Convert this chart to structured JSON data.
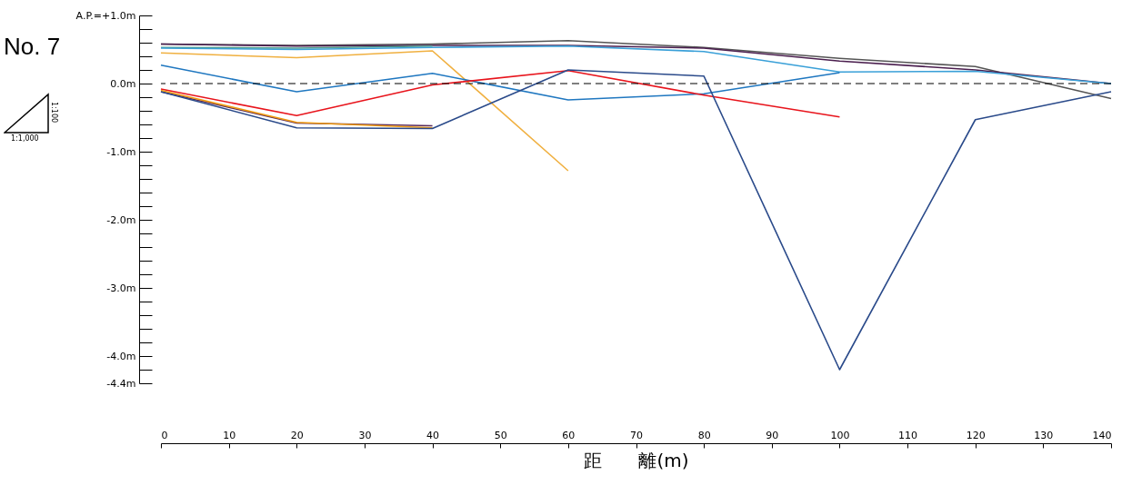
{
  "chart_data": {
    "type": "line",
    "title": "No. 7",
    "xlabel": "距　　離(m)",
    "annotations": [
      "1:100",
      "1:1,000"
    ],
    "x": [
      0,
      20,
      40,
      60,
      80,
      100,
      120,
      140
    ],
    "series": [
      {
        "color": "#555555",
        "values": [
          0.58,
          0.56,
          0.58,
          0.63,
          0.53,
          0.37,
          0.25,
          -0.22
        ]
      },
      {
        "color": "#4b1f4f",
        "values": [
          0.58,
          0.55,
          0.56,
          0.56,
          0.52,
          0.33,
          0.2,
          0.0
        ]
      },
      {
        "color": "#4a9a8a",
        "values": [
          0.53,
          0.52,
          0.55,
          null,
          null,
          null,
          null,
          null
        ]
      },
      {
        "color": "#3aa0d8",
        "values": [
          0.52,
          0.5,
          0.53,
          0.55,
          0.47,
          0.17,
          0.18,
          0.0
        ]
      },
      {
        "color": "#f0b040",
        "values": [
          0.45,
          0.38,
          0.48,
          -1.28,
          null,
          null,
          null,
          null
        ]
      },
      {
        "color": "#1f77c0",
        "values": [
          0.27,
          -0.12,
          0.15,
          -0.24,
          -0.15,
          0.16,
          null,
          null
        ]
      },
      {
        "color": "#e8141c",
        "values": [
          -0.08,
          -0.47,
          -0.02,
          0.19,
          -0.17,
          -0.49,
          null,
          null
        ]
      },
      {
        "color": "#5a2a5a",
        "values": [
          -0.12,
          -0.58,
          -0.62,
          null,
          null,
          null,
          null,
          null
        ]
      },
      {
        "color": "#f09a10",
        "values": [
          -0.1,
          -0.57,
          -0.65,
          null,
          null,
          null,
          null,
          null
        ]
      },
      {
        "color": "#2a4a8a",
        "values": [
          -0.12,
          -0.65,
          -0.66,
          0.2,
          0.11,
          -4.2,
          -0.53,
          -0.12
        ]
      }
    ],
    "xlim": [
      0,
      140
    ],
    "xticks": [
      0,
      10,
      20,
      30,
      40,
      50,
      60,
      70,
      80,
      90,
      100,
      110,
      120,
      130,
      140
    ],
    "ylim": [
      -4.4,
      1.0
    ],
    "yticks": [
      {
        "value": 1.0,
        "label": "A.P.=+1.0m"
      },
      {
        "value": 0.8,
        "label": null
      },
      {
        "value": 0.6,
        "label": null
      },
      {
        "value": 0.4,
        "label": null
      },
      {
        "value": 0.2,
        "label": null
      },
      {
        "value": 0,
        "label": "0.0m"
      },
      {
        "value": -0.2,
        "label": null
      },
      {
        "value": -0.4,
        "label": null
      },
      {
        "value": -0.6,
        "label": null
      },
      {
        "value": -0.8,
        "label": null
      },
      {
        "value": -1.0,
        "label": "-1.0m"
      },
      {
        "value": -1.2,
        "label": null
      },
      {
        "value": -1.4,
        "label": null
      },
      {
        "value": -1.6,
        "label": null
      },
      {
        "value": -1.8,
        "label": null
      },
      {
        "value": -2.0,
        "label": "-2.0m"
      },
      {
        "value": -2.2,
        "label": null
      },
      {
        "value": -2.4,
        "label": null
      },
      {
        "value": -2.6,
        "label": null
      },
      {
        "value": -2.8,
        "label": null
      },
      {
        "value": -3.0,
        "label": "-3.0m"
      },
      {
        "value": -3.2,
        "label": null
      },
      {
        "value": -3.4,
        "label": null
      },
      {
        "value": -3.6,
        "label": null
      },
      {
        "value": -3.8,
        "label": null
      },
      {
        "value": -4.0,
        "label": "-4.0m"
      },
      {
        "value": -4.2,
        "label": null
      },
      {
        "value": -4.4,
        "label": "-4.4m"
      }
    ],
    "ref_lines": [
      {
        "axis": "y",
        "value": 0,
        "color": "#000000",
        "line_style": "dashed"
      }
    ],
    "grid": false,
    "marker": "none",
    "line_style": "solid"
  }
}
